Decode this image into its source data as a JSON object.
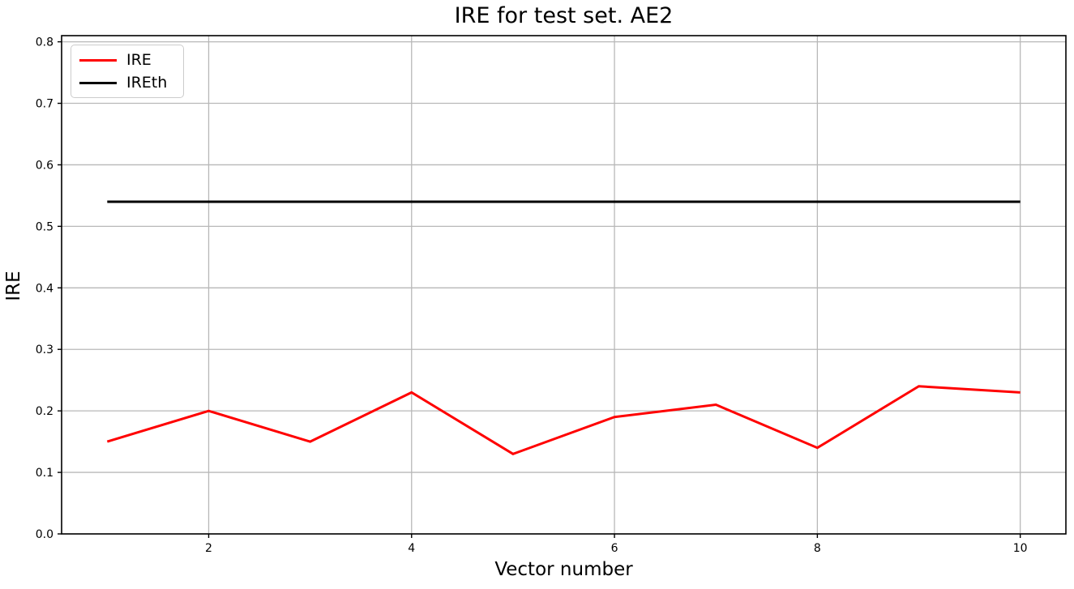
{
  "chart_data": {
    "type": "line",
    "title": "IRE for test set. AE2",
    "xlabel": "Vector number",
    "ylabel": "IRE",
    "x": [
      1,
      2,
      3,
      4,
      5,
      6,
      7,
      8,
      9,
      10
    ],
    "series": [
      {
        "name": "IRE",
        "color": "#ff0000",
        "values": [
          0.15,
          0.2,
          0.15,
          0.23,
          0.13,
          0.19,
          0.21,
          0.14,
          0.24,
          0.23
        ]
      },
      {
        "name": "IREth",
        "color": "#000000",
        "values": [
          0.54,
          0.54,
          0.54,
          0.54,
          0.54,
          0.54,
          0.54,
          0.54,
          0.54,
          0.54
        ]
      }
    ],
    "xlim": [
      0.55,
      10.45
    ],
    "ylim": [
      0,
      0.81
    ],
    "xticks": [
      2,
      4,
      6,
      8,
      10
    ],
    "yticks": [
      0.0,
      0.1,
      0.2,
      0.3,
      0.4,
      0.5,
      0.6,
      0.7,
      0.8
    ],
    "grid": true,
    "grid_color": "#b8b8b8",
    "axis_color": "#000000",
    "background": "#ffffff",
    "legend_position": "upper left"
  }
}
